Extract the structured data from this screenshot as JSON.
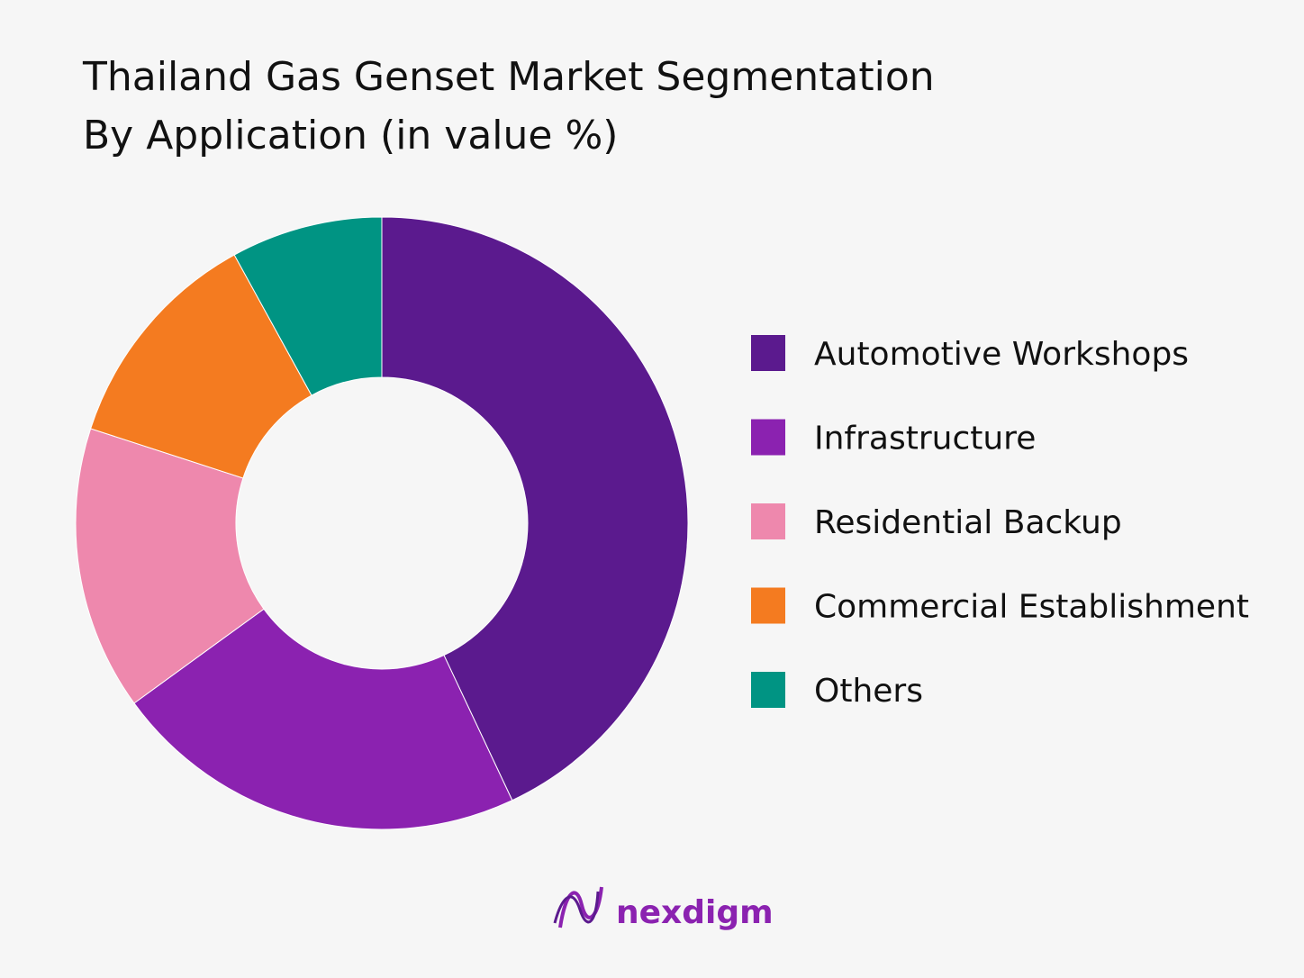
{
  "chart_data": {
    "type": "donut",
    "title": "Thailand Gas Genset Market Segmentation",
    "subtitle": "By Application (in value %)",
    "categories": [
      "Automotive Workshops",
      "Infrastructure",
      "Residential Backup",
      "Commercial Establishment",
      "Others"
    ],
    "values": [
      43,
      22,
      15,
      12,
      8
    ],
    "colors": [
      "#5b1a8e",
      "#8b22b0",
      "#ee88ad",
      "#f47b20",
      "#009483"
    ],
    "legend": "right"
  },
  "logo": "nexdigm"
}
